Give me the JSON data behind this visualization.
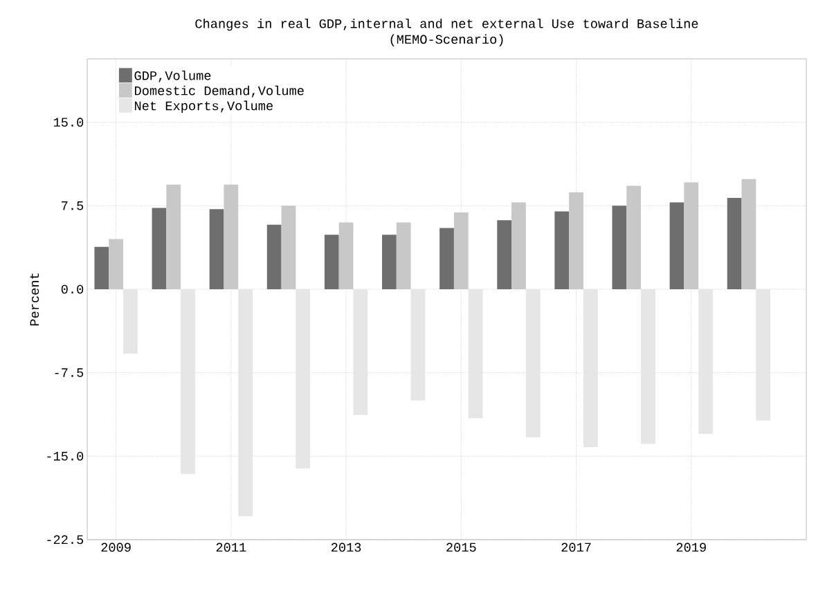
{
  "chart_data": {
    "type": "bar",
    "title": "Changes in real GDP,internal and net external Use toward Baseline",
    "subtitle": "(MEMO-Scenario)",
    "ylabel": "Percent",
    "x": [
      2009,
      2010,
      2011,
      2012,
      2013,
      2014,
      2015,
      2016,
      2017,
      2018,
      2019,
      2020
    ],
    "series": [
      {
        "name": "GDP,Volume",
        "color": "#6e6e6e",
        "values": [
          3.8,
          7.3,
          7.2,
          5.8,
          4.9,
          4.9,
          5.5,
          6.2,
          7.0,
          7.5,
          7.8,
          8.2
        ]
      },
      {
        "name": "Domestic Demand,Volume",
        "color": "#c8c8c8",
        "values": [
          4.5,
          9.4,
          9.4,
          7.5,
          6.0,
          6.0,
          6.9,
          7.8,
          8.7,
          9.3,
          9.6,
          9.9
        ]
      },
      {
        "name": "Net Exports,Volume",
        "color": "#e6e6e6",
        "values": [
          -5.8,
          -16.6,
          -20.4,
          -16.1,
          -11.3,
          -10.0,
          -11.6,
          -13.3,
          -14.2,
          -13.9,
          -13.0,
          -11.8
        ]
      }
    ],
    "xlim": [
      2008.5,
      2021
    ],
    "xticks": [
      2009,
      2011,
      2013,
      2015,
      2017,
      2019
    ],
    "ylim": [
      -22.5,
      20.7
    ],
    "yticks": [
      {
        "value": -22.5,
        "label": "-22.5"
      },
      {
        "value": -15,
        "label": "-15.0"
      },
      {
        "value": -7.5,
        "label": "-7.5"
      },
      {
        "value": 0,
        "label": "0.0"
      },
      {
        "value": 7.5,
        "label": "7.5"
      },
      {
        "value": 15,
        "label": "15.0"
      }
    ],
    "grid": true,
    "legend": "top left"
  }
}
